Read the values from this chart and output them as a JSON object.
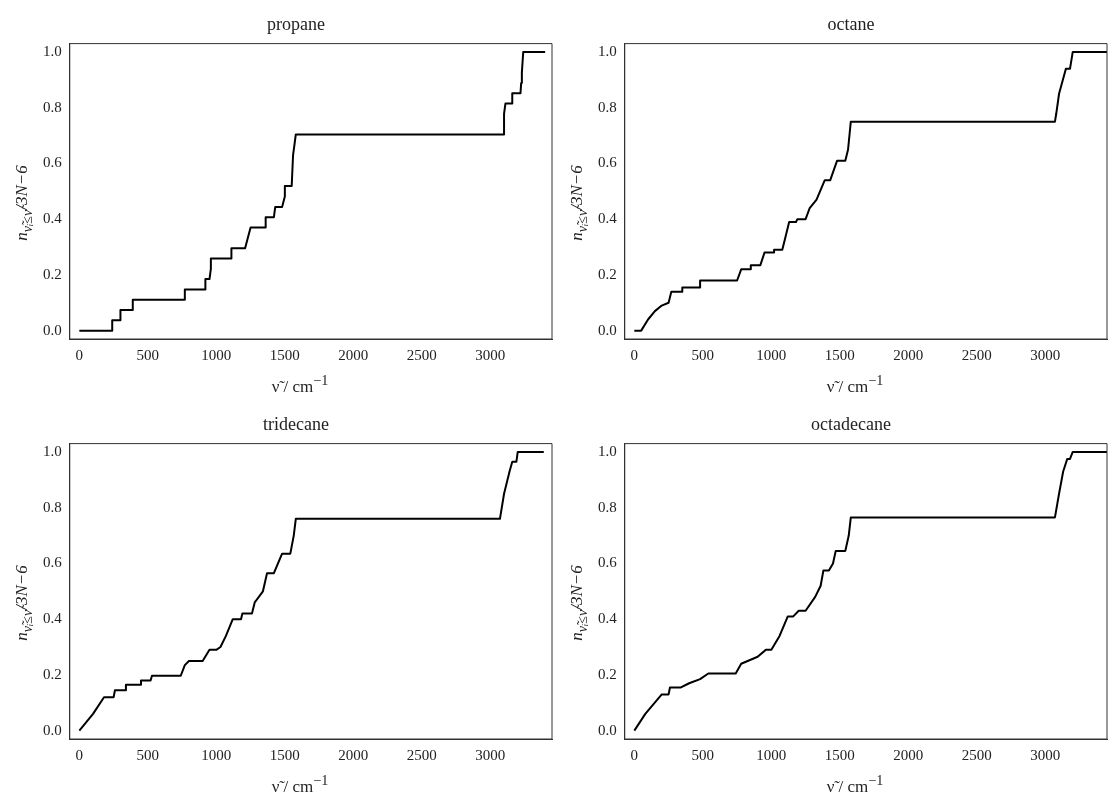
{
  "chart_data": [
    {
      "type": "line",
      "title": "propane",
      "xlabel": "ν̃ / cm$^{−1}$",
      "ylabel": "n$_{ν̃ᵢ≤ν̃}$/3N−6",
      "xlim": [
        -70,
        3450
      ],
      "ylim": [
        -0.03,
        1.03
      ],
      "xticks": [
        0,
        500,
        1000,
        1500,
        2000,
        2500,
        3000
      ],
      "yticks": [
        {
          "value": 0,
          "label": "0.0"
        },
        {
          "value": 0.2,
          "label": "0.2"
        },
        {
          "value": 0.4,
          "label": "0.4"
        },
        {
          "value": 0.6,
          "label": "0.6"
        },
        {
          "value": 0.8,
          "label": "0.8"
        },
        {
          "value": 1,
          "label": "1.0"
        }
      ],
      "grid": false,
      "legend": false,
      "marker": "none",
      "line_style": "solid",
      "color": "#000000",
      "x": [
        0,
        240,
        240,
        300,
        300,
        390,
        390,
        770,
        770,
        920,
        920,
        950,
        960,
        960,
        1110,
        1110,
        1210,
        1230,
        1250,
        1360,
        1360,
        1420,
        1430,
        1480,
        1500,
        1500,
        1550,
        1560,
        1570,
        1580,
        3100,
        3100,
        3110,
        3160,
        3160,
        3220,
        3225,
        3230,
        3240,
        3400
      ],
      "values": [
        0,
        0,
        0.037,
        0.037,
        0.074,
        0.074,
        0.111,
        0.111,
        0.148,
        0.148,
        0.185,
        0.185,
        0.222,
        0.259,
        0.259,
        0.296,
        0.296,
        0.333,
        0.37,
        0.37,
        0.407,
        0.407,
        0.444,
        0.444,
        0.481,
        0.519,
        0.519,
        0.63,
        0.667,
        0.704,
        0.704,
        0.778,
        0.815,
        0.815,
        0.852,
        0.852,
        0.889,
        0.926,
        1,
        1
      ]
    },
    {
      "type": "line",
      "title": "octane",
      "xlabel": "ν̃ / cm$^{−1}$",
      "ylabel": "n$_{ν̃ᵢ≤ν̃}$/3N−6",
      "xlim": [
        -70,
        3450
      ],
      "ylim": [
        -0.03,
        1.03
      ],
      "xticks": [
        0,
        500,
        1000,
        1500,
        2000,
        2500,
        3000
      ],
      "yticks": [
        {
          "value": 0,
          "label": "0.0"
        },
        {
          "value": 0.2,
          "label": "0.2"
        },
        {
          "value": 0.4,
          "label": "0.4"
        },
        {
          "value": 0.6,
          "label": "0.6"
        },
        {
          "value": 0.8,
          "label": "0.8"
        },
        {
          "value": 1,
          "label": "1.0"
        }
      ],
      "grid": false,
      "legend": false,
      "marker": "none",
      "line_style": "solid",
      "color": "#000000",
      "x": [
        0,
        50,
        100,
        150,
        200,
        250,
        270,
        350,
        350,
        480,
        480,
        750,
        780,
        850,
        850,
        920,
        950,
        1020,
        1020,
        1080,
        1100,
        1130,
        1180,
        1190,
        1250,
        1280,
        1330,
        1390,
        1430,
        1480,
        1540,
        1560,
        1580,
        3070,
        3080,
        3100,
        3150,
        3180,
        3190,
        3200,
        3450
      ],
      "values": [
        0,
        0,
        0.04,
        0.07,
        0.09,
        0.1,
        0.14,
        0.14,
        0.155,
        0.155,
        0.18,
        0.18,
        0.22,
        0.22,
        0.235,
        0.235,
        0.28,
        0.28,
        0.29,
        0.29,
        0.33,
        0.39,
        0.39,
        0.4,
        0.4,
        0.44,
        0.47,
        0.54,
        0.54,
        0.61,
        0.61,
        0.65,
        0.75,
        0.75,
        0.78,
        0.85,
        0.94,
        0.94,
        0.97,
        1,
        1
      ]
    },
    {
      "type": "line",
      "title": "tridecane",
      "xlabel": "ν̃ / cm$^{−1}$",
      "ylabel": "n$_{ν̃ᵢ≤ν̃}$/3N−6",
      "xlim": [
        -70,
        3450
      ],
      "ylim": [
        -0.03,
        1.03
      ],
      "xticks": [
        0,
        500,
        1000,
        1500,
        2000,
        2500,
        3000
      ],
      "yticks": [
        {
          "value": 0,
          "label": "0.0"
        },
        {
          "value": 0.2,
          "label": "0.2"
        },
        {
          "value": 0.4,
          "label": "0.4"
        },
        {
          "value": 0.6,
          "label": "0.6"
        },
        {
          "value": 0.8,
          "label": "0.8"
        },
        {
          "value": 1,
          "label": "1.0"
        }
      ],
      "grid": false,
      "legend": false,
      "marker": "none",
      "line_style": "solid",
      "color": "#000000",
      "x": [
        0,
        100,
        180,
        250,
        260,
        340,
        340,
        450,
        450,
        520,
        530,
        740,
        770,
        800,
        900,
        950,
        1000,
        1030,
        1070,
        1120,
        1180,
        1190,
        1260,
        1280,
        1340,
        1370,
        1420,
        1450,
        1480,
        1540,
        1565,
        1580,
        3070,
        3100,
        3140,
        3160,
        3190,
        3200,
        3390
      ],
      "values": [
        0,
        0.06,
        0.12,
        0.12,
        0.145,
        0.145,
        0.165,
        0.165,
        0.18,
        0.18,
        0.197,
        0.197,
        0.235,
        0.25,
        0.25,
        0.29,
        0.29,
        0.3,
        0.34,
        0.4,
        0.4,
        0.42,
        0.42,
        0.46,
        0.5,
        0.565,
        0.565,
        0.6,
        0.635,
        0.635,
        0.7,
        0.76,
        0.76,
        0.85,
        0.93,
        0.965,
        0.965,
        1,
        1
      ]
    },
    {
      "type": "line",
      "title": "octadecane",
      "xlabel": "ν̃ / cm$^{−1}$",
      "ylabel": "n$_{ν̃ᵢ≤ν̃}$/3N−6",
      "xlim": [
        -70,
        3450
      ],
      "ylim": [
        -0.03,
        1.03
      ],
      "xticks": [
        0,
        500,
        1000,
        1500,
        2000,
        2500,
        3000
      ],
      "yticks": [
        {
          "value": 0,
          "label": "0.0"
        },
        {
          "value": 0.2,
          "label": "0.2"
        },
        {
          "value": 0.4,
          "label": "0.4"
        },
        {
          "value": 0.6,
          "label": "0.6"
        },
        {
          "value": 0.8,
          "label": "0.8"
        },
        {
          "value": 1,
          "label": "1.0"
        }
      ],
      "grid": false,
      "legend": false,
      "marker": "none",
      "line_style": "solid",
      "color": "#000000",
      "x": [
        0,
        80,
        200,
        250,
        260,
        340,
        400,
        480,
        540,
        740,
        780,
        900,
        960,
        1000,
        1060,
        1120,
        1160,
        1200,
        1250,
        1320,
        1360,
        1380,
        1420,
        1450,
        1470,
        1540,
        1565,
        1580,
        3070,
        3100,
        3130,
        3160,
        3180,
        3200,
        3450
      ],
      "values": [
        0,
        0.06,
        0.13,
        0.13,
        0.155,
        0.155,
        0.17,
        0.185,
        0.205,
        0.205,
        0.24,
        0.265,
        0.29,
        0.29,
        0.34,
        0.41,
        0.41,
        0.43,
        0.43,
        0.48,
        0.52,
        0.575,
        0.575,
        0.6,
        0.645,
        0.645,
        0.7,
        0.765,
        0.765,
        0.85,
        0.93,
        0.975,
        0.975,
        1,
        1
      ]
    }
  ]
}
